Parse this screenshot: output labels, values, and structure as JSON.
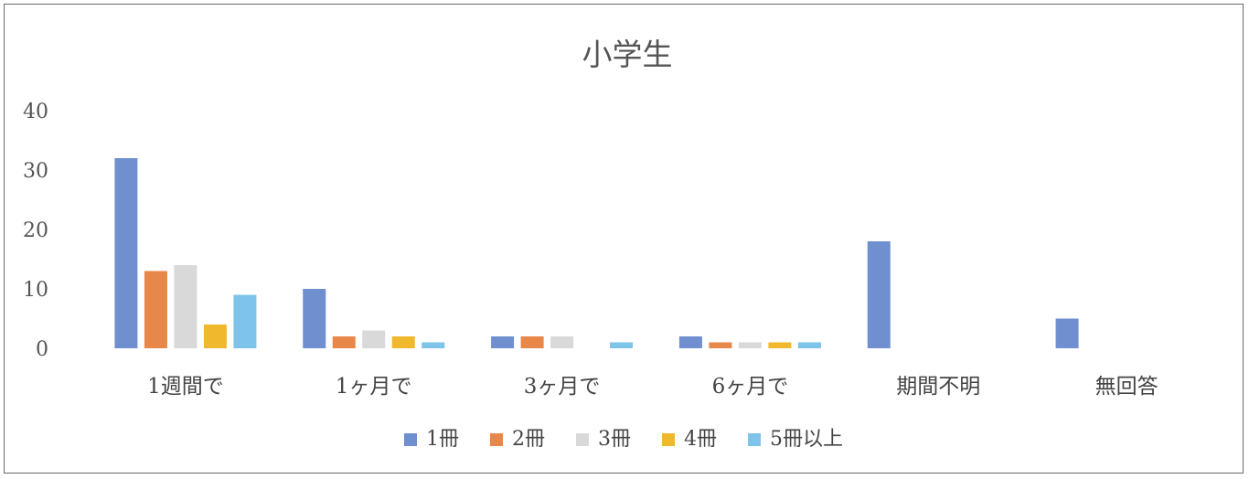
{
  "chart_data": {
    "type": "bar",
    "title": "小学生",
    "categories": [
      "1週間で",
      "1ヶ月で",
      "3ヶ月で",
      "6ヶ月で",
      "期間不明",
      "無回答"
    ],
    "series": [
      {
        "name": "1冊",
        "color": "#6f8fcf",
        "values": [
          32,
          10,
          2,
          2,
          18,
          5
        ]
      },
      {
        "name": "2冊",
        "color": "#e8874a",
        "values": [
          13,
          2,
          2,
          1,
          0,
          0
        ]
      },
      {
        "name": "3冊",
        "color": "#d9d9d9",
        "values": [
          14,
          3,
          2,
          1,
          0,
          0
        ]
      },
      {
        "name": "4冊",
        "color": "#f0b82d",
        "values": [
          4,
          2,
          0,
          1,
          0,
          0
        ]
      },
      {
        "name": "5冊以上",
        "color": "#7ec3ea",
        "values": [
          9,
          1,
          1,
          1,
          0,
          0
        ]
      }
    ],
    "yticks": [
      0,
      10,
      20,
      30,
      40
    ],
    "ylim": [
      0,
      40
    ],
    "grid": false,
    "legend_position": "bottom"
  }
}
